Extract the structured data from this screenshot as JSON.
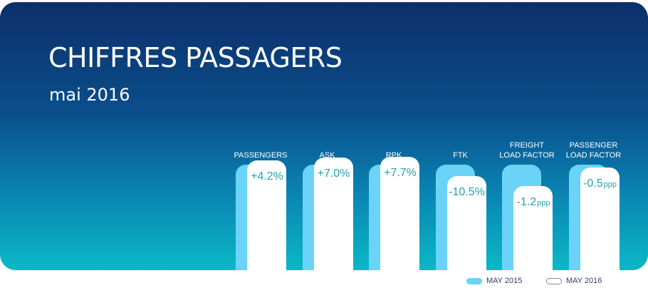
{
  "header": {
    "title": "CHIFFRES PASSAGERS",
    "subtitle": "mai 2016"
  },
  "colors": {
    "may_2015": "#6ad3f7",
    "may_2016": "#ffffff",
    "value_text": "#22a3b5"
  },
  "chart_data": {
    "type": "bar",
    "categories": [
      {
        "lines": [
          "PASSENGERS"
        ],
        "change": "+4.2%",
        "unit": ""
      },
      {
        "lines": [
          "ASK"
        ],
        "change": "+7.0%",
        "unit": ""
      },
      {
        "lines": [
          "RPK"
        ],
        "change": "+7.7%",
        "unit": ""
      },
      {
        "lines": [
          "FTK"
        ],
        "change": "-10.5%",
        "unit": ""
      },
      {
        "lines": [
          "FREIGHT",
          "LOAD FACTOR"
        ],
        "change": "-1.2",
        "unit": "ppp"
      },
      {
        "lines": [
          "PASSENGER",
          "LOAD FACTOR"
        ],
        "change": "-0.5",
        "unit": "ppp"
      }
    ],
    "series": [
      {
        "name": "MAY 2015",
        "values": [
          100,
          100,
          100,
          100,
          100,
          100
        ]
      },
      {
        "name": "MAY 2016",
        "values": [
          104.2,
          107.0,
          107.7,
          89.5,
          80,
          97
        ]
      }
    ],
    "legend": "bottom-right"
  },
  "legend": {
    "items": [
      "MAY 2015",
      "MAY 2016"
    ]
  }
}
